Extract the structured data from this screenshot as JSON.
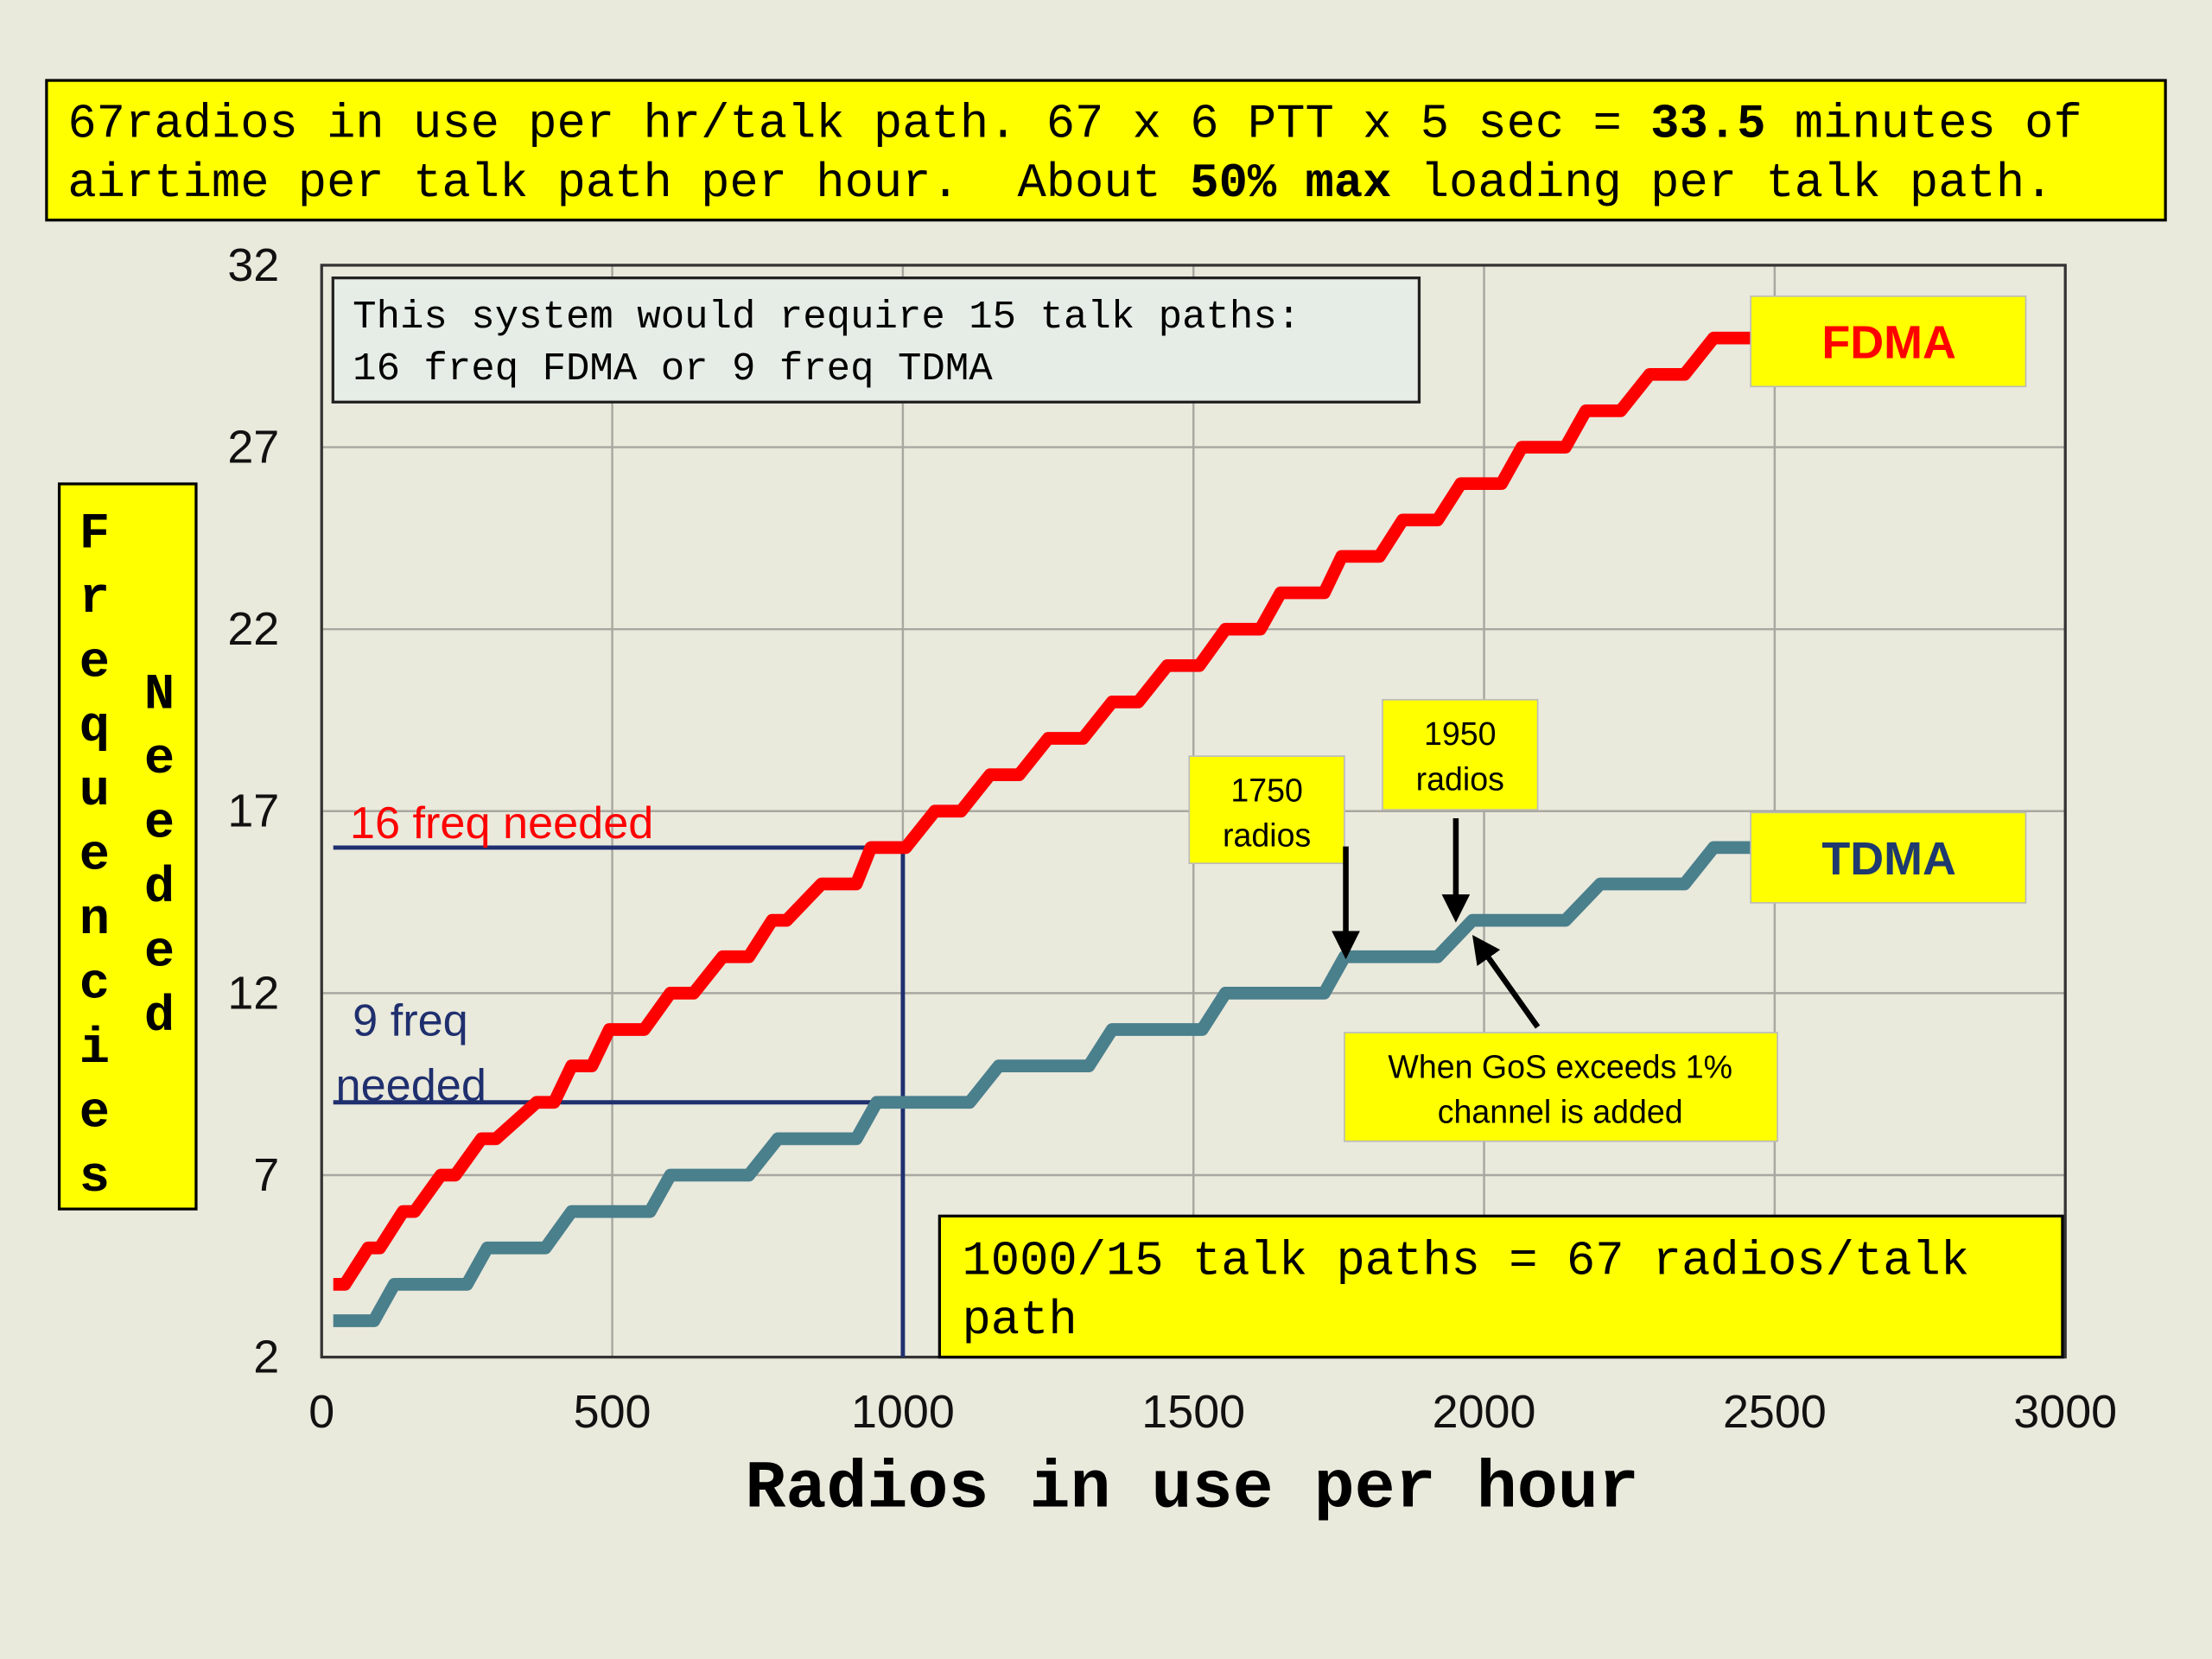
{
  "chart_data": {
    "type": "line",
    "title": [
      [
        {
          "text": "67radios in use per hr/talk path. 67 x 6 PTT x 5 sec = "
        },
        {
          "text": "33.5",
          "bold": true
        },
        {
          "text": " minutes of"
        }
      ],
      [
        {
          "text": "airtime per talk path per hour.  About "
        },
        {
          "text": "50% max",
          "bold": true
        },
        {
          "text": " loading per talk path."
        }
      ]
    ],
    "x_label": "Radios in use per hour",
    "y_label": [
      "Frequencies",
      "Needed"
    ],
    "xlim": [
      0,
      3000
    ],
    "ylim": [
      2,
      32
    ],
    "xticks": [
      0,
      500,
      1000,
      1500,
      2000,
      2500,
      3000
    ],
    "yticks": [
      2,
      7,
      12,
      17,
      22,
      27,
      32
    ],
    "grid": true,
    "series": [
      {
        "name": "FDMA",
        "color": "#ff0000",
        "x": [
          20,
          40,
          80,
          100,
          140,
          160,
          205,
          230,
          275,
          300,
          370,
          400,
          430,
          465,
          495,
          555,
          600,
          640,
          690,
          735,
          775,
          800,
          860,
          920,
          945,
          1005,
          1055,
          1100,
          1150,
          1200,
          1250,
          1310,
          1360,
          1405,
          1455,
          1510,
          1555,
          1615,
          1650,
          1725,
          1755,
          1820,
          1860,
          1920,
          1960,
          2030,
          2065,
          2140,
          2175,
          2235,
          2285,
          2345,
          2395,
          2470
        ],
        "values": [
          4,
          4,
          5,
          5,
          6,
          6,
          7,
          7,
          8,
          8,
          9,
          9,
          10,
          10,
          11,
          11,
          12,
          12,
          13,
          13,
          14,
          14,
          15,
          15,
          16,
          16,
          17,
          17,
          18,
          18,
          19,
          19,
          20,
          20,
          21,
          21,
          22,
          22,
          23,
          23,
          24,
          24,
          25,
          25,
          26,
          26,
          27,
          27,
          28,
          28,
          29,
          29,
          30,
          30
        ]
      },
      {
        "name": "TDMA",
        "color": "#4a7f8c",
        "x": [
          20,
          90,
          125,
          250,
          285,
          385,
          430,
          565,
          600,
          735,
          785,
          920,
          955,
          1115,
          1165,
          1320,
          1360,
          1515,
          1555,
          1725,
          1760,
          1920,
          1980,
          2140,
          2200,
          2345,
          2395,
          2470
        ],
        "values": [
          3,
          3,
          4,
          4,
          5,
          5,
          6,
          6,
          7,
          7,
          8,
          8,
          9,
          9,
          10,
          10,
          11,
          11,
          12,
          12,
          13,
          13,
          14,
          14,
          15,
          15,
          16,
          16
        ]
      }
    ],
    "guides": [
      {
        "color": "#1f2f6e",
        "x": [
          20,
          1000,
          1000
        ],
        "values": [
          16,
          16,
          2
        ]
      },
      {
        "color": "#1f2f6e",
        "x": [
          20,
          1000
        ],
        "values": [
          9,
          9
        ]
      }
    ],
    "annotations": {
      "system": [
        "This system would require 15 talk paths:",
        "16 freq FDMA or 9 freq TDMA"
      ],
      "fdma_needed": "16 freq needed",
      "tdma_needed": [
        "9 freq",
        "needed"
      ],
      "radios_1750": [
        "1750",
        "radios"
      ],
      "radios_1950": [
        "1950",
        "radios"
      ],
      "gos": [
        "When GoS exceeds 1%",
        "channel is added"
      ],
      "talk_paths": [
        "1000/15 talk paths = 67 radios/talk",
        "path"
      ]
    }
  }
}
